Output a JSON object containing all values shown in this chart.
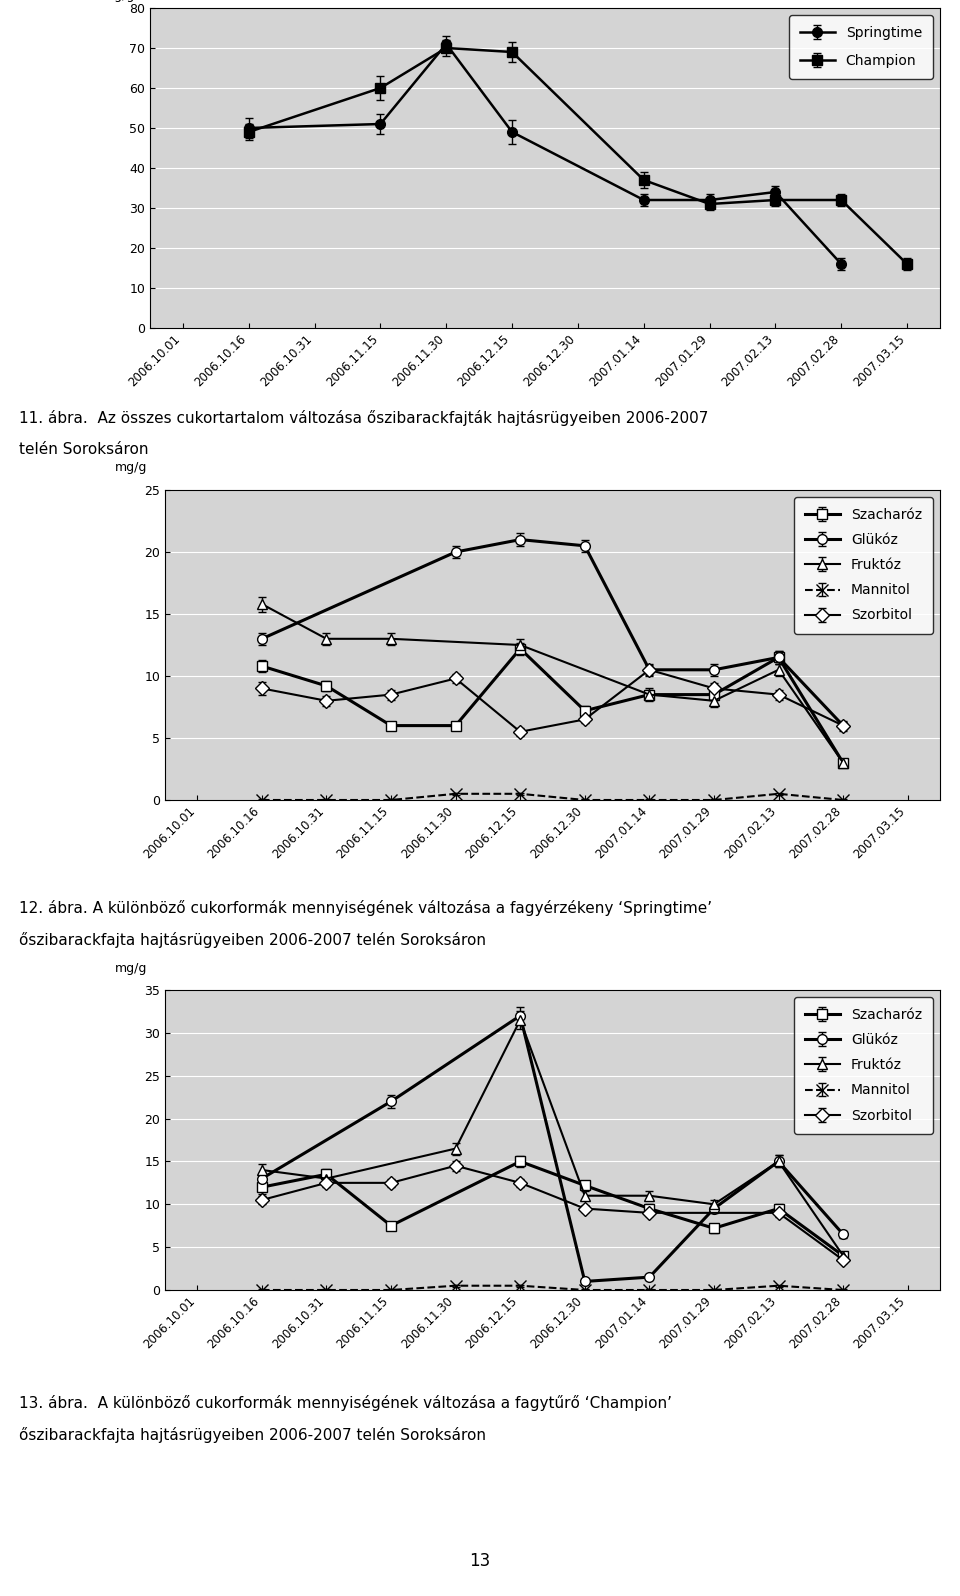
{
  "x_labels": [
    "2006.10.01",
    "2006.10.16",
    "2006.10.31",
    "2006.11.15",
    "2006.11.30",
    "2006.12.15",
    "2006.12.30",
    "2007.01.14",
    "2007.01.29",
    "2007.02.13",
    "2007.02.28",
    "2007.03.15"
  ],
  "chart1": {
    "ylabel": "mg/g",
    "ylim": [
      0,
      80
    ],
    "yticks": [
      0,
      10,
      20,
      30,
      40,
      50,
      60,
      70,
      80
    ],
    "springtime": [
      null,
      50,
      null,
      51,
      71,
      49,
      null,
      32,
      32,
      34,
      16,
      null
    ],
    "springtime_err": [
      null,
      2.5,
      null,
      2.5,
      2.0,
      3.0,
      null,
      1.5,
      1.5,
      1.5,
      1.5,
      null
    ],
    "champion": [
      null,
      49,
      null,
      60,
      70,
      69,
      null,
      37,
      31,
      32,
      32,
      16
    ],
    "champion_err": [
      null,
      2.0,
      null,
      3.0,
      2.0,
      2.5,
      null,
      2.0,
      1.5,
      1.5,
      1.5,
      1.5
    ],
    "legend": [
      "Springtime",
      "Champion"
    ],
    "caption_line1": "11. ábra.  Az összes cukortartalom változása őszibarackfajták hajtásrügyeiben 2006-2007",
    "caption_line2": "telén Soroksáron"
  },
  "chart2": {
    "ylabel": "mg/g",
    "ylim": [
      0,
      25
    ],
    "yticks": [
      0,
      5,
      10,
      15,
      20,
      25
    ],
    "szacharoz": [
      null,
      10.8,
      9.2,
      6.0,
      6.0,
      12.2,
      7.2,
      8.5,
      8.5,
      11.5,
      3.0,
      null
    ],
    "szacharoz_err": [
      null,
      0.5,
      0.4,
      0.3,
      0.3,
      0.5,
      0.4,
      0.4,
      0.4,
      0.5,
      0.3,
      null
    ],
    "glukoz": [
      null,
      13.0,
      null,
      null,
      20.0,
      21.0,
      20.5,
      10.5,
      10.5,
      11.5,
      6.0,
      null
    ],
    "glukoz_err": [
      null,
      0.5,
      null,
      null,
      0.5,
      0.5,
      0.5,
      0.5,
      0.5,
      0.5,
      0.4,
      null
    ],
    "fruktoz": [
      null,
      15.8,
      13.0,
      13.0,
      null,
      12.5,
      null,
      8.5,
      8.0,
      10.5,
      3.0,
      null
    ],
    "fruktoz_err": [
      null,
      0.6,
      0.5,
      0.5,
      null,
      0.5,
      null,
      0.5,
      0.5,
      0.5,
      0.3,
      null
    ],
    "mannitol": [
      null,
      0.0,
      0.0,
      0.0,
      0.5,
      0.5,
      0.0,
      0.0,
      0.0,
      0.5,
      0.0,
      null
    ],
    "mannitol_err": [
      null,
      0.1,
      0.1,
      0.1,
      0.1,
      0.1,
      0.1,
      0.1,
      0.1,
      0.1,
      0.1,
      null
    ],
    "szorbitol": [
      null,
      9.0,
      8.0,
      8.5,
      9.8,
      5.5,
      6.5,
      10.5,
      9.0,
      8.5,
      6.0,
      null
    ],
    "szorbitol_err": [
      null,
      0.5,
      0.4,
      0.4,
      0.4,
      0.3,
      0.3,
      0.4,
      0.4,
      0.4,
      0.3,
      null
    ],
    "legend": [
      "Szacharóz",
      "Glükóz",
      "Fruktóz",
      "Mannitol",
      "Szorbitol"
    ],
    "caption_line1": "12. ábra. A különböző cukorformák mennyiségének változása a fagyérzékeny ‘Springtime’",
    "caption_line2": "őszibarackfajta hajtásrügyeiben 2006-2007 telén Soroksáron"
  },
  "chart3": {
    "ylabel": "mg/g",
    "ylim": [
      0,
      35
    ],
    "yticks": [
      0,
      5,
      10,
      15,
      20,
      25,
      30,
      35
    ],
    "szacharoz": [
      null,
      12.0,
      13.5,
      7.5,
      null,
      15.0,
      12.2,
      9.5,
      7.2,
      9.5,
      4.0,
      null
    ],
    "szacharoz_err": [
      null,
      0.8,
      0.6,
      0.4,
      null,
      0.6,
      0.5,
      0.5,
      0.5,
      0.5,
      0.3,
      null
    ],
    "glukoz": [
      null,
      13.0,
      null,
      22.0,
      null,
      32.0,
      1.0,
      1.5,
      9.5,
      15.0,
      6.5,
      null
    ],
    "glukoz_err": [
      null,
      0.6,
      null,
      0.8,
      null,
      1.0,
      0.3,
      0.3,
      0.5,
      0.7,
      0.4,
      null
    ],
    "fruktoz": [
      null,
      14.0,
      13.0,
      null,
      16.5,
      31.5,
      11.0,
      11.0,
      10.0,
      15.0,
      4.0,
      null
    ],
    "fruktoz_err": [
      null,
      0.7,
      0.6,
      null,
      0.7,
      1.0,
      0.5,
      0.5,
      0.5,
      0.7,
      0.3,
      null
    ],
    "mannitol": [
      null,
      0.0,
      0.0,
      0.0,
      0.5,
      0.5,
      0.0,
      0.0,
      0.0,
      0.5,
      0.0,
      null
    ],
    "mannitol_err": [
      null,
      0.1,
      0.1,
      0.1,
      0.1,
      0.1,
      0.1,
      0.1,
      0.1,
      0.1,
      0.1,
      null
    ],
    "szorbitol": [
      null,
      10.5,
      12.5,
      12.5,
      14.5,
      12.5,
      9.5,
      9.0,
      null,
      9.0,
      3.5,
      null
    ],
    "szorbitol_err": [
      null,
      0.5,
      0.5,
      0.5,
      0.6,
      0.5,
      0.4,
      0.4,
      null,
      0.5,
      0.3,
      null
    ],
    "legend": [
      "Szacharóz",
      "Glükóz",
      "Fruktóz",
      "Mannitol",
      "Szorbitol"
    ],
    "caption_line1": "13. ábra.  A különböző cukorformák mennyiségének változása a fagytűrő ‘Champion’",
    "caption_line2": "őszibarackfajta hajtásrügyeiben 2006-2007 telén Soroksáron"
  },
  "page_number": "13",
  "fig_bg": "#ffffff",
  "plot_bg": "#d4d4d4"
}
